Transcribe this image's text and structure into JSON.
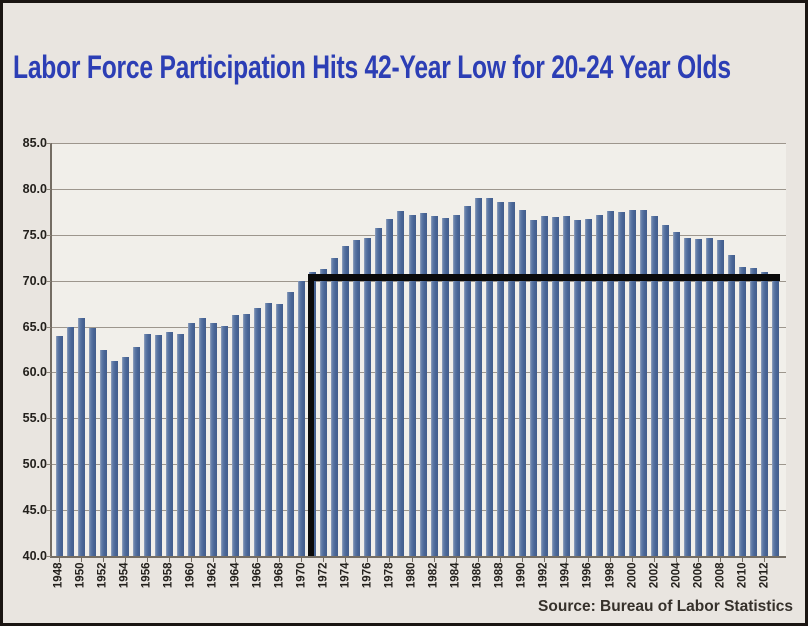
{
  "page": {
    "title": "Labor Force Participation Hits 42-Year Low for 20-24 Year Olds",
    "source": "Source: Bureau of Labor Statistics"
  },
  "colors": {
    "title_blue": "#2c3eb5",
    "bar_blue": "#4a6697",
    "bar_highlight": "#93a3be",
    "annotation_black": "#0a0a0a",
    "page_background": "#e9e5e0",
    "plot_background": "#f1efea",
    "gridline": "#9d968d",
    "axis": "#746d63",
    "label_text": "#23201c",
    "frame_border": "#1a1512"
  },
  "chart_data": {
    "type": "bar",
    "title": "Labor Force Participation Hits 42-Year Low for 20-24 Year Olds",
    "xlabel": "",
    "ylabel": "",
    "ylim": [
      40.0,
      85.0
    ],
    "ytick_interval": 5.0,
    "grid": true,
    "legend_position": "none",
    "bar_color": "#4a6697",
    "ytick_labels": [
      "85.0",
      "80.0",
      "75.0",
      "70.0",
      "65.0",
      "60.0",
      "55.0",
      "50.0",
      "45.0",
      "40.0"
    ],
    "xtick_labels": [
      "1948",
      "1950",
      "1952",
      "1954",
      "1956",
      "1958",
      "1960",
      "1962",
      "1964",
      "1966",
      "1968",
      "1970",
      "1972",
      "1974",
      "1976",
      "1978",
      "1980",
      "1982",
      "1984",
      "1986",
      "1988",
      "1990",
      "1992",
      "1994",
      "1996",
      "1998",
      "2000",
      "2002",
      "2004",
      "2006",
      "2008",
      "2010",
      "2012"
    ],
    "categories": [
      1948,
      1949,
      1950,
      1951,
      1952,
      1953,
      1954,
      1955,
      1956,
      1957,
      1958,
      1959,
      1960,
      1961,
      1962,
      1963,
      1964,
      1965,
      1966,
      1967,
      1968,
      1969,
      1970,
      1971,
      1972,
      1973,
      1974,
      1975,
      1976,
      1977,
      1978,
      1979,
      1980,
      1981,
      1982,
      1983,
      1984,
      1985,
      1986,
      1987,
      1988,
      1989,
      1990,
      1991,
      1992,
      1993,
      1994,
      1995,
      1996,
      1997,
      1998,
      1999,
      2000,
      2001,
      2002,
      2003,
      2004,
      2005,
      2006,
      2007,
      2008,
      2009,
      2010,
      2011,
      2012,
      2013
    ],
    "values": [
      64.0,
      65.0,
      65.9,
      64.9,
      62.4,
      61.3,
      61.7,
      62.8,
      64.2,
      64.1,
      64.4,
      64.2,
      65.4,
      65.9,
      65.4,
      65.1,
      66.3,
      66.4,
      67.0,
      67.6,
      67.5,
      68.8,
      70.0,
      70.9,
      71.3,
      72.5,
      73.8,
      74.4,
      74.7,
      75.7,
      76.7,
      77.6,
      77.2,
      77.4,
      77.1,
      76.8,
      77.2,
      78.1,
      79.0,
      79.0,
      78.6,
      78.6,
      77.7,
      76.6,
      77.0,
      76.9,
      77.1,
      76.6,
      76.7,
      77.2,
      77.6,
      77.5,
      77.7,
      77.7,
      77.1,
      76.1,
      75.3,
      74.6,
      74.5,
      74.6,
      74.4,
      72.8,
      71.5,
      71.4,
      71.0,
      70.7
    ],
    "annotation": {
      "type": "reference-line-L-shape",
      "description": "Thick black L-shaped line: vertical drop at 1971 and horizontal level line extending to 2013, marking the 42-year-low participation level",
      "level": 70.4,
      "drop_year": 1971,
      "end_year": 2013,
      "line_color": "#0a0a0a"
    },
    "source": "Source: Bureau of Labor Statistics"
  }
}
